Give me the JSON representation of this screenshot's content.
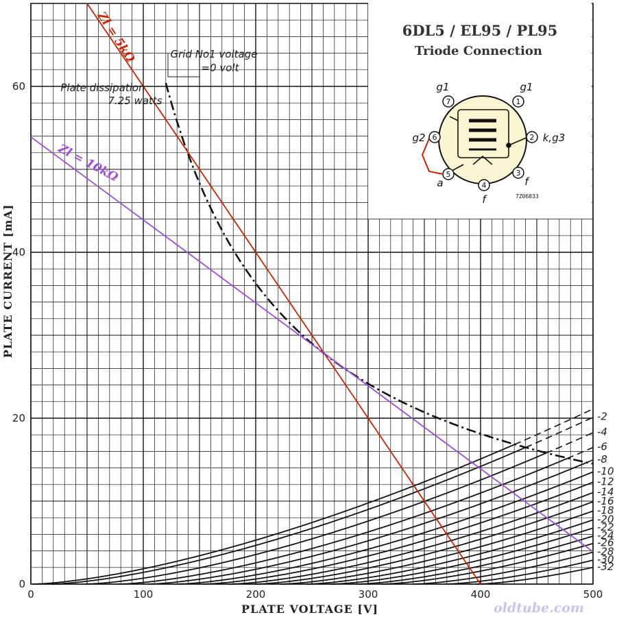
{
  "chart_data": {
    "type": "line",
    "title": "6DL5 / EL95 / PL95",
    "subtitle": "Triode Connection",
    "xlabel": "PLATE VOLTAGE [V]",
    "ylabel": "PLATE CURRENT [mA]",
    "xlim": [
      0,
      500
    ],
    "ylim": [
      0,
      70
    ],
    "x_ticks": [
      0,
      100,
      200,
      300,
      400,
      500
    ],
    "y_ticks": [
      0,
      20,
      40,
      60
    ],
    "grid": true,
    "series_note": "Grid No1 voltage",
    "curves": [
      {
        "label": "Grid No1 voltage\n=0 volt",
        "vg": 0,
        "v0": 2,
        "k": 0.0019
      },
      {
        "label": "-2",
        "vg": -2,
        "v0": 18,
        "k": 0.0019
      },
      {
        "label": "-4",
        "vg": -4,
        "v0": 48,
        "k": 0.0019
      },
      {
        "label": "-6",
        "vg": -6,
        "v0": 78,
        "k": 0.0019
      },
      {
        "label": "-8",
        "vg": -8,
        "v0": 104,
        "k": 0.0019
      },
      {
        "label": "-10",
        "vg": -10,
        "v0": 130,
        "k": 0.0019
      },
      {
        "label": "-12",
        "vg": -12,
        "v0": 153,
        "k": 0.0019
      },
      {
        "label": "-14",
        "vg": -14,
        "v0": 177,
        "k": 0.0019
      },
      {
        "label": "-16",
        "vg": -16,
        "v0": 199,
        "k": 0.0019
      },
      {
        "label": "-18",
        "vg": -18,
        "v0": 222,
        "k": 0.0019
      },
      {
        "label": "-20",
        "vg": -20,
        "v0": 245,
        "k": 0.0019
      },
      {
        "label": "-22",
        "vg": -22,
        "v0": 267,
        "k": 0.0019
      },
      {
        "label": "-24",
        "vg": -24,
        "v0": 290,
        "k": 0.0019
      },
      {
        "label": "-26",
        "vg": -26,
        "v0": 312,
        "k": 0.0019
      },
      {
        "label": "-28",
        "vg": -28,
        "v0": 340,
        "k": 0.0019
      },
      {
        "label": "-30",
        "vg": -30,
        "v0": 368,
        "k": 0.0019
      },
      {
        "label": "-32",
        "vg": -32,
        "v0": 396,
        "k": 0.0019
      }
    ],
    "dissipation": {
      "label": "Plate dissipation\n7.25 watts",
      "watts": 7.25,
      "v_range": [
        120,
        500
      ]
    },
    "load_lines": [
      {
        "label": "Zl = 5kΩ",
        "color": "#cc2200",
        "points": [
          [
            50,
            70
          ],
          [
            400,
            0
          ]
        ]
      },
      {
        "label": "Zl = 10kΩ",
        "color": "#9f4bd9",
        "points": [
          [
            0,
            53.9
          ],
          [
            500,
            3.9
          ]
        ]
      }
    ]
  },
  "pinout": {
    "pins": [
      {
        "num": "7",
        "label": "g1"
      },
      {
        "num": "1",
        "label": "g1"
      },
      {
        "num": "6",
        "label": "g2"
      },
      {
        "num": "2",
        "label": "k,g3"
      },
      {
        "num": "5",
        "label": "a"
      },
      {
        "num": "3",
        "label": "f"
      },
      {
        "num": "4",
        "label": "f"
      }
    ],
    "code": "7Z06833"
  },
  "watermark": "oldtube.com"
}
